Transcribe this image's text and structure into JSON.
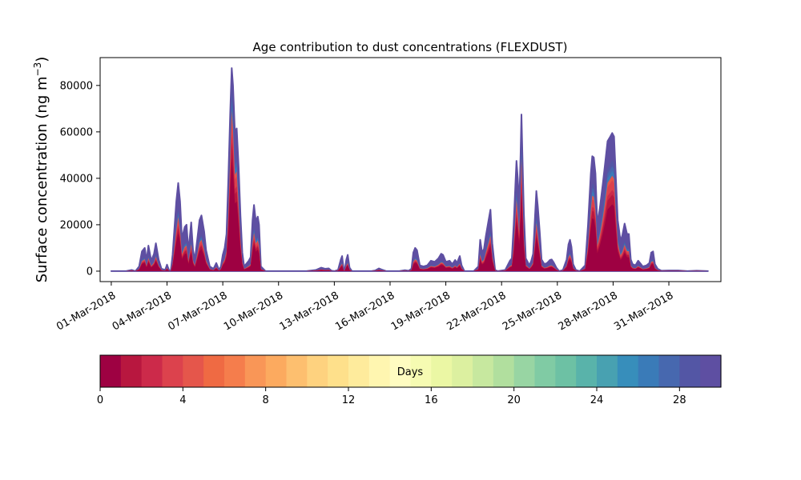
{
  "chart_data": {
    "type": "area",
    "title": "Age contribution to dust concentrations (FLEXDUST)",
    "ylabel": "Surface concentration (ng m",
    "ylabel_sup": "−3",
    "ylabel_close": ")",
    "xlabel": "",
    "x_unit": "day of March 2018",
    "xlim": [
      -0.6,
      32.8
    ],
    "ylim": [
      -4500,
      92000
    ],
    "grid": false,
    "yticks": [
      0,
      20000,
      40000,
      60000,
      80000
    ],
    "xticks": [
      {
        "x": 0,
        "label": "01-Mar-2018"
      },
      {
        "x": 3,
        "label": "04-Mar-2018"
      },
      {
        "x": 6,
        "label": "07-Mar-2018"
      },
      {
        "x": 9,
        "label": "10-Mar-2018"
      },
      {
        "x": 12,
        "label": "13-Mar-2018"
      },
      {
        "x": 15,
        "label": "16-Mar-2018"
      },
      {
        "x": 18,
        "label": "19-Mar-2018"
      },
      {
        "x": 21,
        "label": "22-Mar-2018"
      },
      {
        "x": 24,
        "label": "25-Mar-2018"
      },
      {
        "x": 27,
        "label": "28-Mar-2018"
      },
      {
        "x": 30,
        "label": "31-Mar-2018"
      }
    ],
    "total": [
      [
        0,
        0
      ],
      [
        0.8,
        0
      ],
      [
        1.1,
        500
      ],
      [
        1.3,
        0
      ],
      [
        1.5,
        2000
      ],
      [
        1.65,
        8500
      ],
      [
        1.8,
        10000
      ],
      [
        1.9,
        4500
      ],
      [
        2.0,
        11000
      ],
      [
        2.15,
        4500
      ],
      [
        2.3,
        7500
      ],
      [
        2.4,
        12000
      ],
      [
        2.55,
        5000
      ],
      [
        2.7,
        1000
      ],
      [
        2.9,
        500
      ],
      [
        3.0,
        2800
      ],
      [
        3.1,
        500
      ],
      [
        3.2,
        0
      ],
      [
        3.3,
        7000
      ],
      [
        3.5,
        30000
      ],
      [
        3.6,
        38000
      ],
      [
        3.7,
        30000
      ],
      [
        3.8,
        14000
      ],
      [
        3.95,
        19000
      ],
      [
        4.05,
        20000
      ],
      [
        4.15,
        8500
      ],
      [
        4.3,
        21000
      ],
      [
        4.4,
        9000
      ],
      [
        4.5,
        5000
      ],
      [
        4.6,
        12000
      ],
      [
        4.75,
        22000
      ],
      [
        4.85,
        24000
      ],
      [
        5.0,
        17000
      ],
      [
        5.1,
        9000
      ],
      [
        5.3,
        2000
      ],
      [
        5.5,
        1000
      ],
      [
        5.65,
        3500
      ],
      [
        5.8,
        500
      ],
      [
        5.9,
        2000
      ],
      [
        6.0,
        7000
      ],
      [
        6.1,
        10000
      ],
      [
        6.2,
        16000
      ],
      [
        6.3,
        40000
      ],
      [
        6.4,
        68000
      ],
      [
        6.48,
        87500
      ],
      [
        6.55,
        80000
      ],
      [
        6.65,
        60000
      ],
      [
        6.75,
        61500
      ],
      [
        6.85,
        45000
      ],
      [
        6.95,
        24000
      ],
      [
        7.05,
        8000
      ],
      [
        7.15,
        2000
      ],
      [
        7.3,
        3500
      ],
      [
        7.4,
        4500
      ],
      [
        7.5,
        6000
      ],
      [
        7.6,
        22000
      ],
      [
        7.68,
        28500
      ],
      [
        7.78,
        21500
      ],
      [
        7.88,
        23500
      ],
      [
        7.95,
        20000
      ],
      [
        8.05,
        2000
      ],
      [
        8.3,
        0
      ],
      [
        10.5,
        0
      ],
      [
        11.0,
        500
      ],
      [
        11.3,
        1500
      ],
      [
        11.5,
        1000
      ],
      [
        11.7,
        1200
      ],
      [
        11.85,
        200
      ],
      [
        12.0,
        0
      ],
      [
        12.2,
        500
      ],
      [
        12.35,
        5000
      ],
      [
        12.42,
        6500
      ],
      [
        12.5,
        1000
      ],
      [
        12.55,
        0
      ],
      [
        12.65,
        5000
      ],
      [
        12.72,
        7000
      ],
      [
        12.82,
        1500
      ],
      [
        12.95,
        0
      ],
      [
        14.0,
        0
      ],
      [
        14.2,
        300
      ],
      [
        14.4,
        1200
      ],
      [
        14.55,
        700
      ],
      [
        14.8,
        0
      ],
      [
        15.5,
        0
      ],
      [
        15.8,
        400
      ],
      [
        16.0,
        200
      ],
      [
        16.15,
        1000
      ],
      [
        16.25,
        8000
      ],
      [
        16.35,
        10000
      ],
      [
        16.45,
        9000
      ],
      [
        16.6,
        2500
      ],
      [
        16.8,
        2000
      ],
      [
        17.0,
        2500
      ],
      [
        17.2,
        4500
      ],
      [
        17.4,
        4000
      ],
      [
        17.6,
        5500
      ],
      [
        17.75,
        7500
      ],
      [
        17.85,
        7000
      ],
      [
        18.0,
        4000
      ],
      [
        18.2,
        4500
      ],
      [
        18.35,
        3000
      ],
      [
        18.5,
        4800
      ],
      [
        18.6,
        3500
      ],
      [
        18.75,
        6500
      ],
      [
        18.85,
        2500
      ],
      [
        19.0,
        0
      ],
      [
        19.5,
        0
      ],
      [
        19.75,
        2000
      ],
      [
        19.85,
        13500
      ],
      [
        19.95,
        8000
      ],
      [
        20.05,
        9500
      ],
      [
        20.15,
        15000
      ],
      [
        20.3,
        22000
      ],
      [
        20.4,
        26500
      ],
      [
        20.5,
        12000
      ],
      [
        20.65,
        500
      ],
      [
        20.8,
        0
      ],
      [
        21.2,
        500
      ],
      [
        21.45,
        4500
      ],
      [
        21.55,
        5500
      ],
      [
        21.65,
        20000
      ],
      [
        21.75,
        38500
      ],
      [
        21.8,
        47500
      ],
      [
        21.87,
        40000
      ],
      [
        21.95,
        28000
      ],
      [
        22.02,
        50000
      ],
      [
        22.07,
        67500
      ],
      [
        22.12,
        50000
      ],
      [
        22.2,
        25000
      ],
      [
        22.3,
        5500
      ],
      [
        22.5,
        2500
      ],
      [
        22.6,
        4500
      ],
      [
        22.7,
        7500
      ],
      [
        22.8,
        24000
      ],
      [
        22.87,
        34500
      ],
      [
        22.95,
        28000
      ],
      [
        23.05,
        17000
      ],
      [
        23.15,
        5000
      ],
      [
        23.3,
        3000
      ],
      [
        23.45,
        3500
      ],
      [
        23.6,
        4800
      ],
      [
        23.7,
        5000
      ],
      [
        23.8,
        3800
      ],
      [
        23.95,
        1500
      ],
      [
        24.1,
        0
      ],
      [
        24.3,
        500
      ],
      [
        24.5,
        5000
      ],
      [
        24.6,
        11500
      ],
      [
        24.68,
        13500
      ],
      [
        24.76,
        10500
      ],
      [
        24.85,
        3000
      ],
      [
        25.0,
        500
      ],
      [
        25.2,
        0
      ],
      [
        25.5,
        2500
      ],
      [
        25.65,
        20000
      ],
      [
        25.8,
        42000
      ],
      [
        25.88,
        49500
      ],
      [
        25.96,
        49000
      ],
      [
        26.05,
        42000
      ],
      [
        26.15,
        20000
      ],
      [
        26.3,
        28000
      ],
      [
        26.45,
        38000
      ],
      [
        26.55,
        45000
      ],
      [
        26.7,
        56000
      ],
      [
        26.85,
        58000
      ],
      [
        26.95,
        59500
      ],
      [
        27.05,
        58000
      ],
      [
        27.15,
        40000
      ],
      [
        27.25,
        22000
      ],
      [
        27.4,
        13000
      ],
      [
        27.5,
        15500
      ],
      [
        27.62,
        20500
      ],
      [
        27.75,
        16000
      ],
      [
        27.85,
        16000
      ],
      [
        27.95,
        5000
      ],
      [
        28.05,
        3000
      ],
      [
        28.2,
        2500
      ],
      [
        28.35,
        4500
      ],
      [
        28.45,
        3500
      ],
      [
        28.6,
        2000
      ],
      [
        28.8,
        2500
      ],
      [
        28.95,
        3500
      ],
      [
        29.05,
        8000
      ],
      [
        29.15,
        8500
      ],
      [
        29.25,
        3000
      ],
      [
        29.4,
        1000
      ],
      [
        29.6,
        200
      ],
      [
        30.0,
        300
      ],
      [
        30.5,
        300
      ],
      [
        31.0,
        0
      ],
      [
        31.5,
        200
      ],
      [
        32.1,
        0
      ]
    ],
    "colorbar": {
      "label": "Days",
      "min": 0,
      "max": 30,
      "ticks": [
        0,
        4,
        8,
        12,
        16,
        20,
        24,
        28
      ],
      "colors": [
        "#9e0142",
        "#b8173f",
        "#cc2a4a",
        "#dc424d",
        "#e5564b",
        "#ef6a43",
        "#f57d4c",
        "#f99657",
        "#fcaa5f",
        "#fdbf6f",
        "#fed27f",
        "#fee08b",
        "#feeb9c",
        "#fff6b0",
        "#fffcc1",
        "#f6fbb2",
        "#ebf7a4",
        "#dcf0a0",
        "#c7e89f",
        "#b1df9e",
        "#98d5a3",
        "#80cba4",
        "#6dc1a4",
        "#59b3aa",
        "#48a1b1",
        "#378ebb",
        "#3a7bb8",
        "#4768af",
        "#5356a5",
        "#5e4fa2"
      ]
    }
  }
}
